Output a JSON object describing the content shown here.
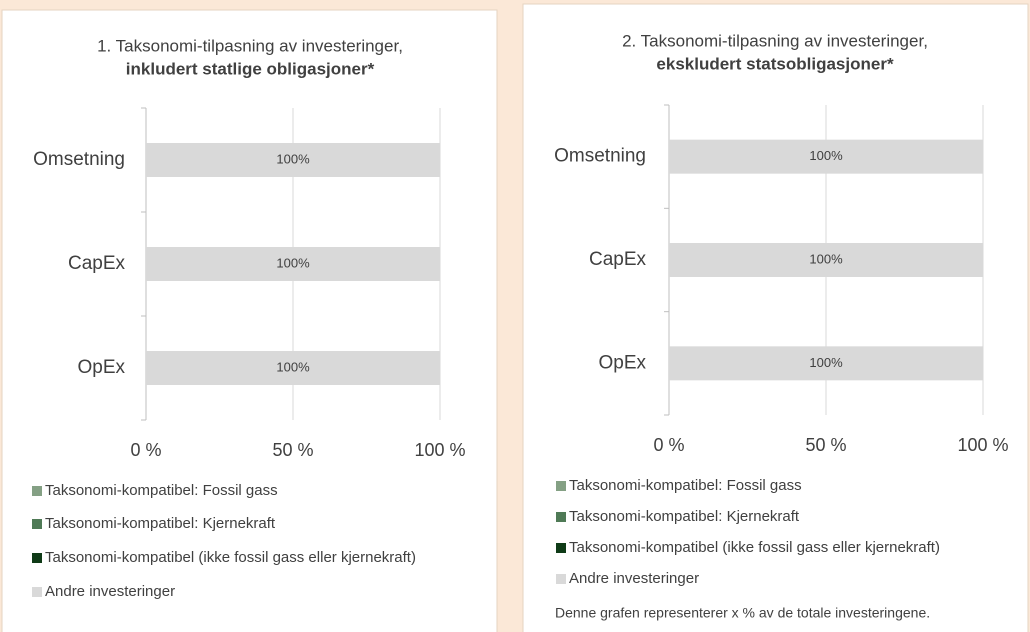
{
  "chart_data": [
    {
      "type": "bar",
      "orientation": "horizontal",
      "stacked": true,
      "title": "1. Taksonomi-tilpasning av investeringer,",
      "subtitle": "inkludert statlige obligasjoner*",
      "categories": [
        "Omsetning",
        "CapEx",
        "OpEx"
      ],
      "series": [
        {
          "name": "Taksonomi-kompatibel: Fossil gass",
          "color": "#84a084",
          "values": [
            0,
            0,
            0
          ]
        },
        {
          "name": "Taksonomi-kompatibel: Kjernekraft",
          "color": "#4f7a56",
          "values": [
            0,
            0,
            0
          ]
        },
        {
          "name": "Taksonomi-kompatibel (ikke fossil gass eller kjernekraft)",
          "color": "#0f3b17",
          "values": [
            0,
            0,
            0
          ]
        },
        {
          "name": "Andre investeringer",
          "color": "#d9d9d9",
          "values": [
            100,
            100,
            100
          ],
          "value_labels": [
            "100%",
            "100%",
            "100%"
          ]
        }
      ],
      "xlim": [
        0,
        100
      ],
      "xticks": [
        {
          "value": 0,
          "label": "0 %"
        },
        {
          "value": 50,
          "label": "50 %"
        },
        {
          "value": 100,
          "label": "100 %"
        }
      ],
      "grid": true,
      "legend": "bottom"
    },
    {
      "type": "bar",
      "orientation": "horizontal",
      "stacked": true,
      "title": "2. Taksonomi-tilpasning av investeringer,",
      "subtitle": "ekskludert statsobligasjoner*",
      "categories": [
        "Omsetning",
        "CapEx",
        "OpEx"
      ],
      "series": [
        {
          "name": "Taksonomi-kompatibel: Fossil gass",
          "color": "#84a084",
          "values": [
            0,
            0,
            0
          ]
        },
        {
          "name": "Taksonomi-kompatibel: Kjernekraft",
          "color": "#4f7a56",
          "values": [
            0,
            0,
            0
          ]
        },
        {
          "name": "Taksonomi-kompatibel (ikke fossil gass eller kjernekraft)",
          "color": "#0f3b17",
          "values": [
            0,
            0,
            0
          ]
        },
        {
          "name": "Andre investeringer",
          "color": "#d9d9d9",
          "values": [
            100,
            100,
            100
          ],
          "value_labels": [
            "100%",
            "100%",
            "100%"
          ]
        }
      ],
      "xlim": [
        0,
        100
      ],
      "xticks": [
        {
          "value": 0,
          "label": "0 %"
        },
        {
          "value": 50,
          "label": "50 %"
        },
        {
          "value": 100,
          "label": "100 %"
        }
      ],
      "grid": true,
      "legend": "bottom",
      "note": "Denne grafen representerer x % av de totale investeringene."
    }
  ]
}
